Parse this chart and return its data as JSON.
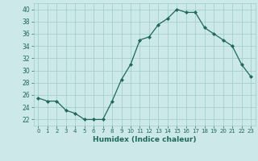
{
  "x": [
    0,
    1,
    2,
    3,
    4,
    5,
    6,
    7,
    8,
    9,
    10,
    11,
    12,
    13,
    14,
    15,
    16,
    17,
    18,
    19,
    20,
    21,
    22,
    23
  ],
  "y": [
    25.5,
    25.0,
    25.0,
    23.5,
    23.0,
    22.0,
    22.0,
    22.0,
    25.0,
    28.5,
    31.0,
    35.0,
    35.5,
    37.5,
    38.5,
    40.0,
    39.5,
    39.5,
    37.0,
    36.0,
    35.0,
    34.0,
    31.0,
    29.0
  ],
  "line_color": "#1a6b5a",
  "marker": "D",
  "marker_size": 2.0,
  "bg_color": "#cce8e8",
  "grid_color": "#99cccc",
  "xlabel": "Humidex (Indice chaleur)",
  "ylabel": "",
  "xlim": [
    -0.5,
    23.5
  ],
  "ylim": [
    21.0,
    41.0
  ],
  "yticks": [
    22,
    24,
    26,
    28,
    30,
    32,
    34,
    36,
    38,
    40
  ],
  "xticks": [
    0,
    1,
    2,
    3,
    4,
    5,
    6,
    7,
    8,
    9,
    10,
    11,
    12,
    13,
    14,
    15,
    16,
    17,
    18,
    19,
    20,
    21,
    22,
    23
  ]
}
